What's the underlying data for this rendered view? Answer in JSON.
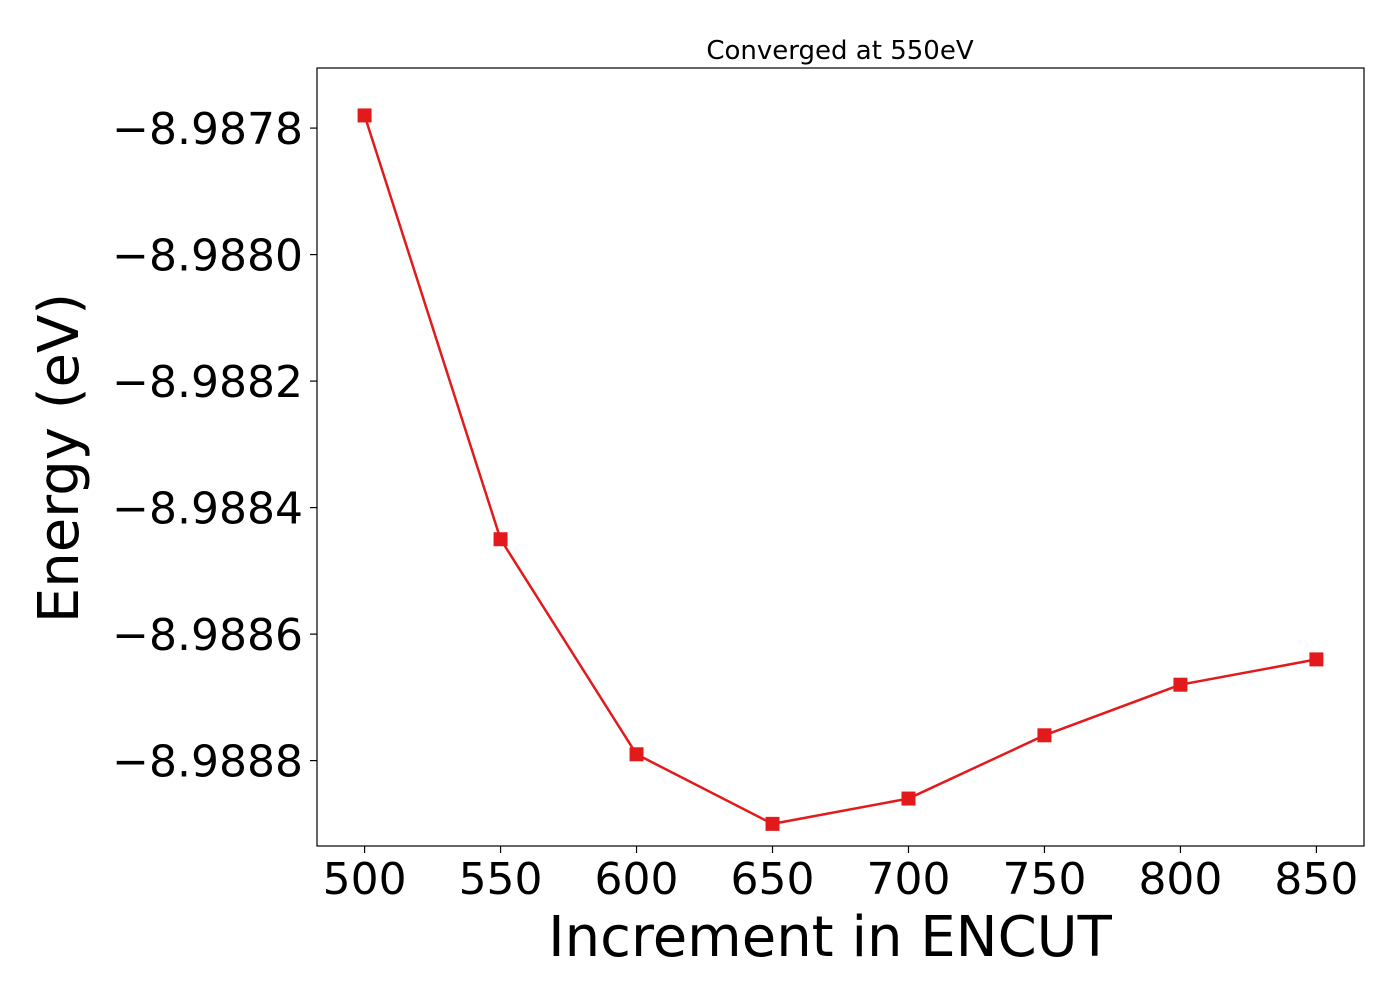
{
  "chart_data": {
    "type": "line",
    "title": "Converged at 550eV",
    "xlabel": "Increment in ENCUT",
    "ylabel": "Energy (eV)",
    "x": [
      500,
      550,
      600,
      650,
      700,
      750,
      800,
      850
    ],
    "series": [
      {
        "values": [
          -8.98778,
          -8.98845,
          -8.98879,
          -8.9889,
          -8.98886,
          -8.98876,
          -8.98868,
          -8.98864
        ],
        "color": "#e31a1c",
        "marker": "square"
      }
    ],
    "xticks": [
      500,
      550,
      600,
      650,
      700,
      750,
      800,
      850
    ],
    "xtick_labels": [
      "500",
      "550",
      "600",
      "650",
      "700",
      "750",
      "800",
      "850"
    ],
    "yticks": [
      -8.9878,
      -8.988,
      -8.9882,
      -8.9884,
      -8.9886,
      -8.9888
    ],
    "ytick_labels": [
      "−8.9878",
      "−8.9880",
      "−8.9882",
      "−8.9884",
      "−8.9886",
      "−8.9888"
    ],
    "xlim": [
      482.5,
      867.5
    ],
    "ylim": [
      -8.988935,
      -8.987705
    ],
    "grid": false,
    "legend": "none"
  }
}
